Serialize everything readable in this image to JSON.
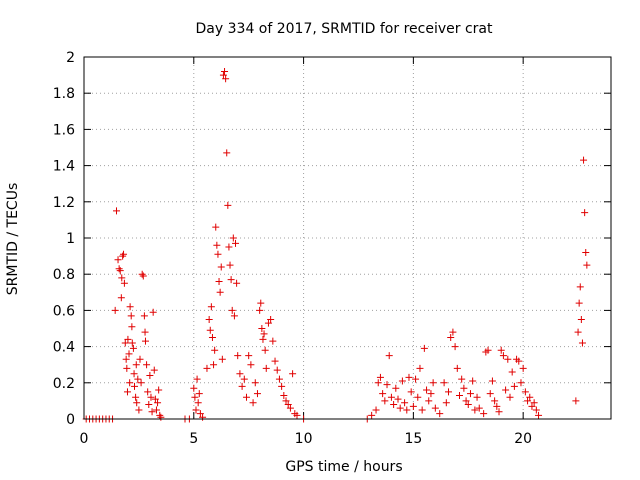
{
  "chart_data": {
    "type": "scatter",
    "title": "Day 334 of 2017, SRMTID for receiver crat",
    "xlabel": "GPS time / hours",
    "ylabel": "SRMTID / TECUs",
    "xlim": [
      0,
      24
    ],
    "ylim": [
      0,
      2
    ],
    "xticks": [
      0,
      5,
      10,
      15,
      20
    ],
    "xtick_labels": [
      "0",
      "5",
      "10",
      "15",
      "20"
    ],
    "yticks": [
      0,
      0.2,
      0.4,
      0.6,
      0.8,
      1,
      1.2,
      1.4,
      1.6,
      1.8,
      2
    ],
    "ytick_labels": [
      "0",
      "0.2",
      "0.4",
      "0.6",
      "0.8",
      "1",
      "1.2",
      "1.4",
      "1.6",
      "1.8",
      "2"
    ],
    "grid": true,
    "marker": "+",
    "color": "#e00000",
    "series": [
      {
        "name": "SRMTID",
        "x": [
          0.1,
          0.25,
          0.4,
          0.55,
          0.7,
          0.85,
          1.0,
          1.15,
          1.3,
          1.42,
          1.48,
          1.55,
          1.6,
          1.65,
          1.7,
          1.72,
          1.76,
          1.8,
          1.84,
          1.88,
          1.92,
          1.95,
          1.98,
          2.0,
          2.05,
          2.08,
          2.1,
          2.15,
          2.18,
          2.2,
          2.25,
          2.28,
          2.3,
          2.35,
          2.38,
          2.4,
          2.45,
          2.5,
          2.55,
          2.6,
          2.65,
          2.7,
          2.75,
          2.78,
          2.8,
          2.85,
          2.9,
          2.95,
          3.0,
          3.05,
          3.1,
          3.15,
          3.2,
          3.25,
          3.3,
          3.35,
          3.4,
          3.45,
          3.5,
          4.6,
          4.8,
          5.0,
          5.05,
          5.1,
          5.15,
          5.2,
          5.25,
          5.3,
          5.4,
          5.6,
          5.7,
          5.75,
          5.8,
          5.85,
          5.9,
          5.95,
          6.0,
          6.05,
          6.1,
          6.15,
          6.2,
          6.25,
          6.3,
          6.35,
          6.4,
          6.45,
          6.5,
          6.55,
          6.6,
          6.65,
          6.7,
          6.75,
          6.8,
          6.85,
          6.9,
          6.95,
          7.0,
          7.1,
          7.2,
          7.3,
          7.4,
          7.5,
          7.6,
          7.7,
          7.8,
          7.9,
          8.0,
          8.05,
          8.1,
          8.15,
          8.2,
          8.25,
          8.3,
          8.4,
          8.5,
          8.6,
          8.7,
          8.8,
          8.9,
          9.0,
          9.1,
          9.2,
          9.3,
          9.4,
          9.5,
          9.6,
          9.7,
          10.0,
          12.9,
          13.1,
          13.3,
          13.4,
          13.5,
          13.6,
          13.7,
          13.8,
          13.9,
          14.0,
          14.1,
          14.2,
          14.3,
          14.4,
          14.5,
          14.6,
          14.7,
          14.8,
          14.9,
          15.0,
          15.1,
          15.2,
          15.3,
          15.4,
          15.5,
          15.6,
          15.7,
          15.8,
          15.9,
          16.0,
          16.2,
          16.4,
          16.5,
          16.6,
          16.7,
          16.8,
          16.9,
          17.0,
          17.1,
          17.2,
          17.3,
          17.4,
          17.5,
          17.6,
          17.7,
          17.8,
          17.9,
          18.0,
          18.2,
          18.3,
          18.4,
          18.5,
          18.6,
          18.7,
          18.8,
          18.9,
          19.0,
          19.1,
          19.2,
          19.3,
          19.4,
          19.5,
          19.6,
          19.7,
          19.8,
          19.9,
          20.0,
          20.1,
          20.2,
          20.3,
          20.4,
          20.5,
          20.6,
          20.7,
          22.4,
          22.5,
          22.55,
          22.6,
          22.65,
          22.7,
          22.75,
          22.8,
          22.85,
          22.9
        ],
        "y": [
          0,
          0,
          0,
          0,
          0,
          0,
          0,
          0,
          0,
          0.6,
          1.15,
          0.88,
          0.83,
          0.82,
          0.67,
          0.78,
          0.9,
          0.91,
          0.75,
          0.42,
          0.33,
          0.28,
          0.15,
          0.44,
          0.36,
          0.2,
          0.62,
          0.57,
          0.51,
          0.42,
          0.39,
          0.25,
          0.18,
          0.12,
          0.3,
          0.09,
          0.22,
          0.05,
          0.33,
          0.2,
          0.8,
          0.79,
          0.57,
          0.48,
          0.43,
          0.3,
          0.15,
          0.08,
          0.24,
          0.12,
          0.04,
          0.59,
          0.27,
          0.11,
          0.05,
          0.09,
          0.16,
          0.02,
          0.01,
          0,
          0,
          0.17,
          0.12,
          0.05,
          0.22,
          0.09,
          0.14,
          0.03,
          0.01,
          0.28,
          0.55,
          0.49,
          0.62,
          0.45,
          0.3,
          0.38,
          1.06,
          0.96,
          0.91,
          0.76,
          0.7,
          0.84,
          0.33,
          1.9,
          1.92,
          1.88,
          1.47,
          1.18,
          0.95,
          0.85,
          0.77,
          0.6,
          1.0,
          0.57,
          0.97,
          0.75,
          0.35,
          0.25,
          0.18,
          0.22,
          0.12,
          0.35,
          0.3,
          0.09,
          0.2,
          0.14,
          0.6,
          0.64,
          0.5,
          0.44,
          0.47,
          0.38,
          0.28,
          0.53,
          0.55,
          0.43,
          0.32,
          0.27,
          0.22,
          0.18,
          0.13,
          0.1,
          0.08,
          0.06,
          0.25,
          0.03,
          0.02,
          0,
          0,
          0.02,
          0.05,
          0.2,
          0.23,
          0.14,
          0.1,
          0.19,
          0.35,
          0.12,
          0.08,
          0.17,
          0.11,
          0.06,
          0.21,
          0.09,
          0.05,
          0.23,
          0.15,
          0.07,
          0.22,
          0.12,
          0.28,
          0.05,
          0.39,
          0.16,
          0.1,
          0.14,
          0.2,
          0.06,
          0.03,
          0.2,
          0.09,
          0.15,
          0.45,
          0.48,
          0.4,
          0.28,
          0.13,
          0.22,
          0.17,
          0.1,
          0.08,
          0.14,
          0.21,
          0.05,
          0.12,
          0.06,
          0.03,
          0.37,
          0.38,
          0.14,
          0.21,
          0.1,
          0.07,
          0.04,
          0.38,
          0.35,
          0.16,
          0.33,
          0.12,
          0.26,
          0.18,
          0.33,
          0.32,
          0.2,
          0.28,
          0.15,
          0.1,
          0.12,
          0.07,
          0.09,
          0.05,
          0.02,
          0.1,
          0.48,
          0.64,
          0.73,
          0.55,
          0.42,
          1.43,
          1.14,
          0.92,
          0.85
        ]
      }
    ]
  }
}
